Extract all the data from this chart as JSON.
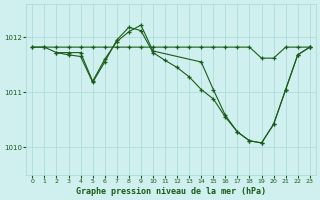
{
  "background_color": "#cff0ee",
  "grid_color": "#a8d8d8",
  "line_color": "#1a5c1a",
  "xlabel": "Graphe pression niveau de la mer (hPa)",
  "ylim": [
    1009.5,
    1012.6
  ],
  "xlim": [
    -0.5,
    23.5
  ],
  "yticks": [
    1010,
    1011,
    1012
  ],
  "xticks": [
    0,
    1,
    2,
    3,
    4,
    5,
    6,
    7,
    8,
    9,
    10,
    11,
    12,
    13,
    14,
    15,
    16,
    17,
    18,
    19,
    20,
    21,
    22,
    23
  ],
  "series": [
    {
      "x": [
        0,
        1,
        2,
        3,
        4,
        5,
        6,
        7,
        8,
        9,
        10,
        11,
        12,
        13,
        14,
        15,
        16,
        17,
        18,
        19,
        20,
        21,
        22,
        23
      ],
      "y": [
        1011.82,
        1011.82,
        1011.82,
        1011.82,
        1011.82,
        1011.82,
        1011.82,
        1011.82,
        1011.82,
        1011.82,
        1011.82,
        1011.82,
        1011.82,
        1011.82,
        1011.82,
        1011.82,
        1011.82,
        1011.82,
        1011.82,
        1011.62,
        1011.62,
        1011.82,
        1011.82,
        1011.82
      ]
    },
    {
      "x": [
        0,
        1,
        2,
        3,
        4,
        5,
        6,
        7,
        8,
        9,
        10,
        14,
        15,
        16,
        17,
        18,
        19,
        20,
        21,
        22,
        23
      ],
      "y": [
        1011.82,
        1011.82,
        1011.72,
        1011.72,
        1011.72,
        1011.2,
        1011.6,
        1011.92,
        1012.1,
        1012.22,
        1011.75,
        1011.55,
        1011.05,
        1010.58,
        1010.28,
        1010.12,
        1010.08,
        1010.42,
        1011.05,
        1011.68,
        1011.82
      ]
    },
    {
      "x": [
        2,
        3,
        4,
        5,
        6,
        7,
        8,
        9,
        10,
        11,
        12,
        13,
        14,
        15,
        16,
        17,
        18,
        19,
        20,
        21,
        22,
        23
      ],
      "y": [
        1011.72,
        1011.68,
        1011.65,
        1011.18,
        1011.55,
        1011.95,
        1012.18,
        1012.12,
        1011.72,
        1011.58,
        1011.45,
        1011.28,
        1011.05,
        1010.88,
        1010.55,
        1010.28,
        1010.12,
        1010.08,
        1010.42,
        1011.05,
        1011.68,
        1011.82
      ]
    }
  ]
}
